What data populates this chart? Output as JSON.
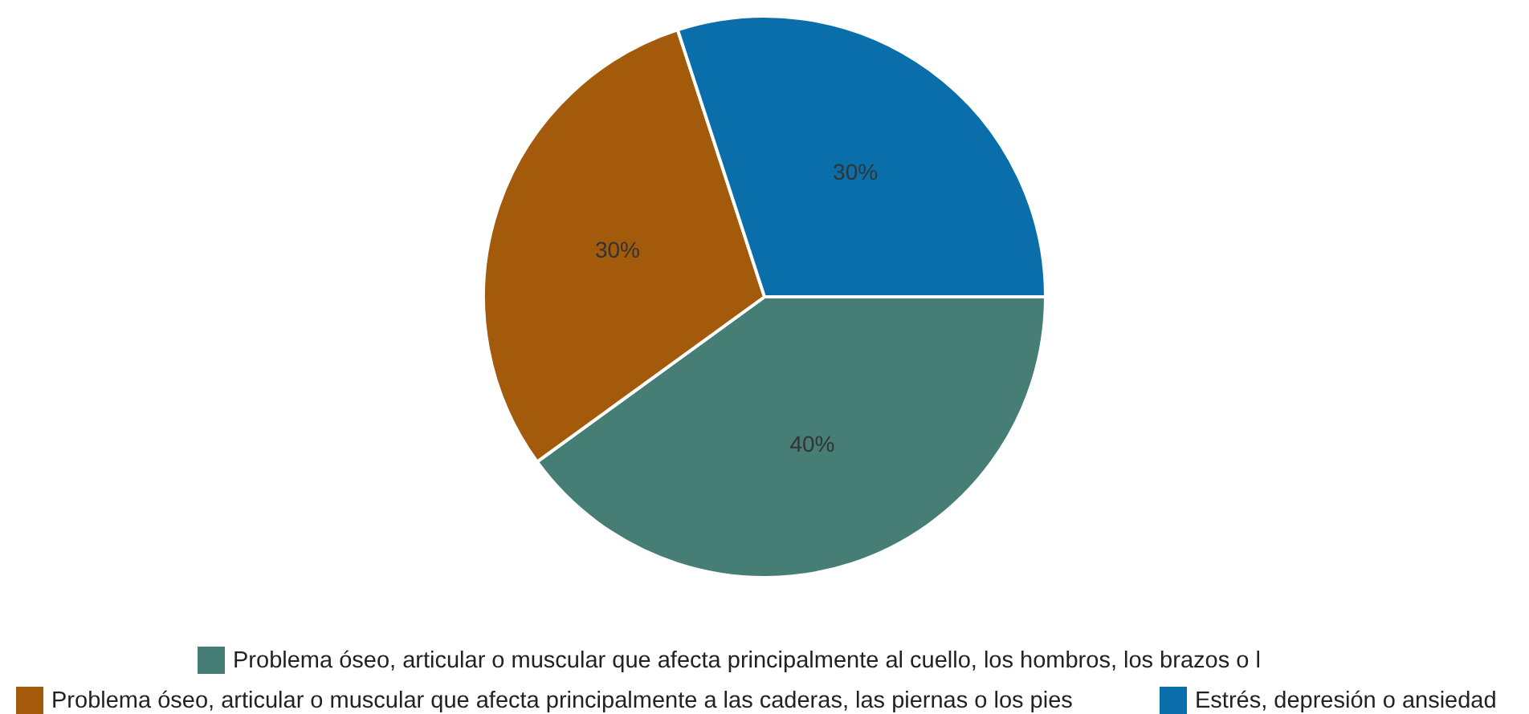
{
  "chart_data": {
    "type": "pie",
    "categories": [
      "Problema óseo, articular o muscular que afecta principalmente al cuello, los hombros, los brazos o l",
      "Problema óseo, articular o muscular que afecta principalmente a las caderas, las piernas o los pies",
      "Estrés, depresión o ansiedad"
    ],
    "values": [
      40,
      30,
      30
    ],
    "colors": [
      "#467e76",
      "#a35a0b",
      "#0a6eaa"
    ],
    "value_labels": [
      "40%",
      "30%",
      "30%"
    ],
    "legend": "bottom"
  }
}
